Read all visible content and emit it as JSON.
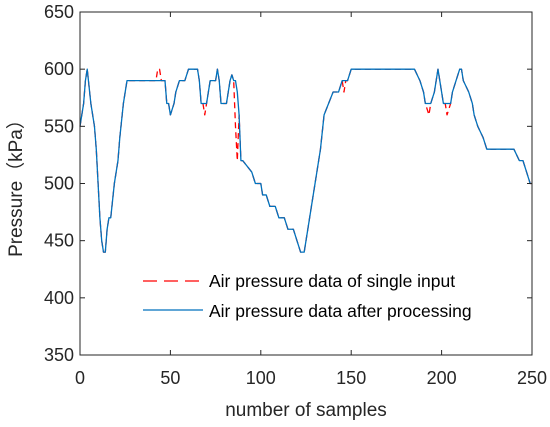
{
  "chart_data": {
    "type": "line",
    "xlabel": "number of samples",
    "ylabel": "Pressure（kPa）",
    "xlim": [
      0,
      250
    ],
    "ylim": [
      350,
      650
    ],
    "xticks": [
      "0",
      "50",
      "100",
      "150",
      "200",
      "250"
    ],
    "yticks": [
      "350",
      "400",
      "450",
      "500",
      "550",
      "600",
      "650"
    ],
    "grid": false,
    "legend_position": "lower-right",
    "series": [
      {
        "name": "Air pressure data of single input",
        "color": "#ff0000",
        "style": "dashed",
        "x": [
          0,
          2,
          3,
          4,
          5,
          6,
          8,
          9,
          10,
          11,
          12,
          13,
          14,
          15,
          16,
          17,
          19,
          21,
          22,
          24,
          25,
          26,
          30,
          35,
          40,
          42,
          43,
          44,
          45,
          47,
          48,
          49,
          50,
          52,
          53,
          55,
          58,
          60,
          63,
          65,
          66,
          67,
          68,
          69,
          70,
          71,
          72,
          75,
          76,
          77,
          78,
          80,
          81,
          82,
          83,
          84,
          85,
          86,
          87,
          88,
          89,
          90,
          95,
          97,
          100,
          101,
          103,
          105,
          108,
          110,
          113,
          115,
          118,
          120,
          122,
          123,
          124,
          126,
          128,
          130,
          133,
          135,
          140,
          143,
          145,
          146,
          147,
          148,
          150,
          153,
          155,
          160,
          165,
          170,
          175,
          180,
          185,
          188,
          190,
          191,
          192,
          193,
          194,
          196,
          197,
          198,
          199,
          200,
          201,
          202,
          203,
          204,
          205,
          206,
          208,
          210,
          211,
          212,
          215,
          217,
          218,
          220,
          223,
          225,
          228,
          230,
          235,
          240,
          243,
          245,
          247,
          248,
          249,
          250
        ],
        "y": [
          550,
          570,
          590,
          600,
          585,
          570,
          550,
          530,
          500,
          470,
          450,
          440,
          440,
          460,
          470,
          470,
          500,
          520,
          540,
          570,
          580,
          590,
          590,
          590,
          590,
          590,
          600,
          600,
          590,
          590,
          570,
          570,
          560,
          570,
          580,
          590,
          590,
          600,
          600,
          600,
          590,
          570,
          570,
          560,
          570,
          580,
          590,
          590,
          600,
          590,
          570,
          570,
          570,
          580,
          590,
          595,
          590,
          550,
          520,
          560,
          520,
          520,
          510,
          500,
          500,
          490,
          490,
          480,
          480,
          470,
          470,
          460,
          460,
          450,
          440,
          440,
          440,
          460,
          480,
          500,
          530,
          560,
          580,
          580,
          590,
          580,
          590,
          590,
          600,
          600,
          600,
          600,
          600,
          600,
          600,
          600,
          600,
          590,
          580,
          570,
          565,
          560,
          570,
          580,
          590,
          600,
          590,
          580,
          570,
          570,
          560,
          565,
          570,
          580,
          590,
          600,
          600,
          590,
          580,
          570,
          560,
          550,
          540,
          530,
          530,
          530,
          530,
          530,
          520,
          520,
          510,
          505,
          500,
          500
        ]
      },
      {
        "name": "Air pressure data after processing",
        "color": "#0072bd",
        "style": "solid",
        "x": [
          0,
          2,
          3,
          4,
          5,
          6,
          8,
          9,
          10,
          11,
          12,
          13,
          14,
          15,
          16,
          17,
          19,
          21,
          22,
          24,
          25,
          26,
          30,
          35,
          40,
          42,
          43,
          44,
          45,
          47,
          48,
          49,
          50,
          52,
          53,
          55,
          58,
          60,
          63,
          65,
          66,
          67,
          68,
          69,
          70,
          71,
          72,
          75,
          76,
          77,
          78,
          80,
          81,
          82,
          83,
          84,
          85,
          86,
          87,
          88,
          89,
          90,
          95,
          97,
          100,
          101,
          103,
          105,
          108,
          110,
          113,
          115,
          118,
          120,
          122,
          123,
          124,
          126,
          128,
          130,
          133,
          135,
          140,
          143,
          145,
          146,
          147,
          148,
          150,
          153,
          155,
          160,
          165,
          170,
          175,
          180,
          185,
          188,
          190,
          191,
          192,
          193,
          194,
          196,
          197,
          198,
          199,
          200,
          201,
          202,
          203,
          204,
          205,
          206,
          208,
          210,
          211,
          212,
          215,
          217,
          218,
          220,
          223,
          225,
          228,
          230,
          235,
          240,
          243,
          245,
          247,
          248,
          249,
          250
        ],
        "y": [
          550,
          570,
          590,
          600,
          585,
          570,
          550,
          530,
          500,
          470,
          450,
          440,
          440,
          460,
          470,
          470,
          500,
          520,
          540,
          570,
          580,
          590,
          590,
          590,
          590,
          590,
          590,
          590,
          590,
          590,
          570,
          570,
          560,
          570,
          580,
          590,
          590,
          600,
          600,
          600,
          590,
          570,
          570,
          570,
          570,
          580,
          590,
          590,
          600,
          590,
          570,
          570,
          570,
          580,
          590,
          595,
          590,
          590,
          580,
          560,
          520,
          520,
          510,
          500,
          500,
          490,
          490,
          480,
          480,
          470,
          470,
          460,
          460,
          450,
          440,
          440,
          440,
          460,
          480,
          500,
          530,
          560,
          580,
          580,
          590,
          590,
          590,
          590,
          600,
          600,
          600,
          600,
          600,
          600,
          600,
          600,
          600,
          590,
          580,
          570,
          570,
          570,
          570,
          580,
          590,
          600,
          590,
          580,
          570,
          570,
          570,
          570,
          570,
          580,
          590,
          600,
          600,
          590,
          580,
          570,
          560,
          550,
          540,
          530,
          530,
          530,
          530,
          530,
          520,
          520,
          510,
          505,
          500,
          500
        ]
      }
    ]
  }
}
